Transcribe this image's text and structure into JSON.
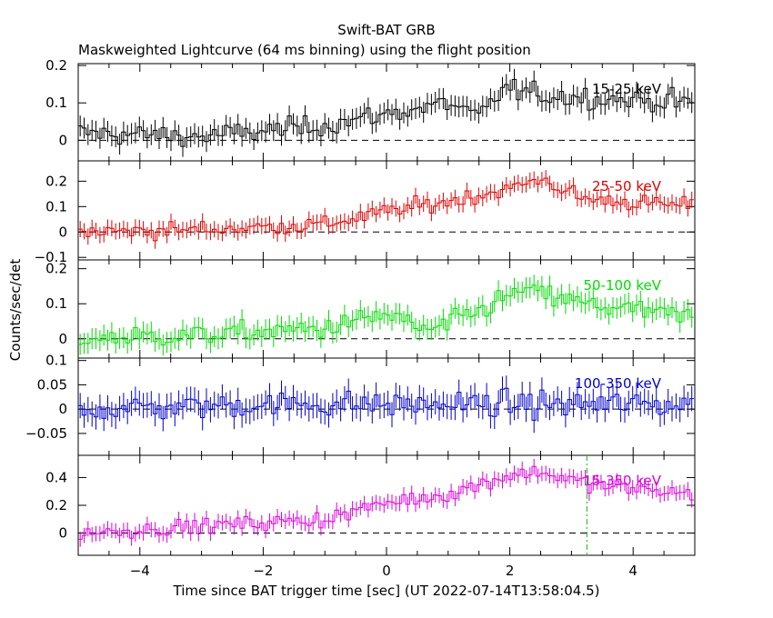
{
  "chart_data": {
    "type": "line",
    "title": "Swift-BAT GRB",
    "subtitle": "Maskweighted Lightcurve (64 ms binning) using the flight position",
    "xlabel": "Time since BAT trigger time [sec] (UT 2022-07-14T13:58:04.5)",
    "ylabel": "Counts/sec/det",
    "xlim": [
      -5,
      5
    ],
    "x_ticks": [
      "−4",
      "−2",
      "0",
      "2",
      "4"
    ],
    "x_tick_values": [
      -4,
      -2,
      0,
      2,
      4
    ],
    "grid": false,
    "marker_line_x": 3.25,
    "marker_line_color": "#00c000",
    "panels": [
      {
        "name": "15-25 keV",
        "color": "#000000",
        "ylim": [
          -0.055,
          0.205
        ],
        "y_ticks": [
          "0",
          "0.1",
          "0.2"
        ],
        "y_tick_values": [
          0,
          0.1,
          0.2
        ],
        "err": 0.028,
        "knots_x": [
          -5,
          -3,
          -1,
          0,
          1,
          1.5,
          1.9,
          2.5,
          5
        ],
        "knots_y": [
          0.02,
          0.01,
          0.04,
          0.07,
          0.1,
          0.06,
          0.14,
          0.12,
          0.1
        ]
      },
      {
        "name": "25-50 keV",
        "color": "#e00000",
        "ylim": [
          -0.11,
          0.28
        ],
        "y_ticks": [
          "−0.1",
          "0",
          "0.1",
          "0.2"
        ],
        "y_tick_values": [
          -0.1,
          0,
          0.1,
          0.2
        ],
        "err": 0.032,
        "knots_x": [
          -5,
          -3,
          -1,
          0,
          1,
          2,
          2.5,
          3.2,
          5
        ],
        "knots_y": [
          0.0,
          0.01,
          0.03,
          0.08,
          0.12,
          0.17,
          0.21,
          0.13,
          0.1
        ]
      },
      {
        "name": "50-100 keV",
        "color": "#00dd00",
        "ylim": [
          -0.055,
          0.225
        ],
        "y_ticks": [
          "0",
          "0.1",
          "0.2"
        ],
        "y_tick_values": [
          0,
          0.1,
          0.2
        ],
        "err": 0.03,
        "knots_x": [
          -5,
          -3,
          -1,
          0,
          0.7,
          1.5,
          2.2,
          3.2,
          5
        ],
        "knots_y": [
          0.0,
          0.01,
          0.03,
          0.07,
          0.02,
          0.08,
          0.14,
          0.1,
          0.06
        ]
      },
      {
        "name": "100-350 keV",
        "color": "#0000cc",
        "ylim": [
          -0.095,
          0.105
        ],
        "y_ticks": [
          "−0.05",
          "0",
          "0.05",
          "0.1"
        ],
        "y_tick_values": [
          -0.05,
          0,
          0.05,
          0.1
        ],
        "err": 0.026,
        "knots_x": [
          -5,
          -2,
          0,
          2,
          5
        ],
        "knots_y": [
          0.0,
          0.01,
          0.01,
          0.01,
          0.01
        ]
      },
      {
        "name": "15-350 keV",
        "color": "#dd00dd",
        "ylim": [
          -0.16,
          0.56
        ],
        "y_ticks": [
          "0",
          "0.2",
          "0.4"
        ],
        "y_tick_values": [
          0,
          0.2,
          0.4
        ],
        "err": 0.055,
        "knots_x": [
          -5,
          -3,
          -1,
          0,
          1,
          2,
          2.5,
          3.3,
          5
        ],
        "knots_y": [
          0.0,
          0.05,
          0.1,
          0.22,
          0.28,
          0.42,
          0.44,
          0.35,
          0.28
        ]
      }
    ]
  }
}
